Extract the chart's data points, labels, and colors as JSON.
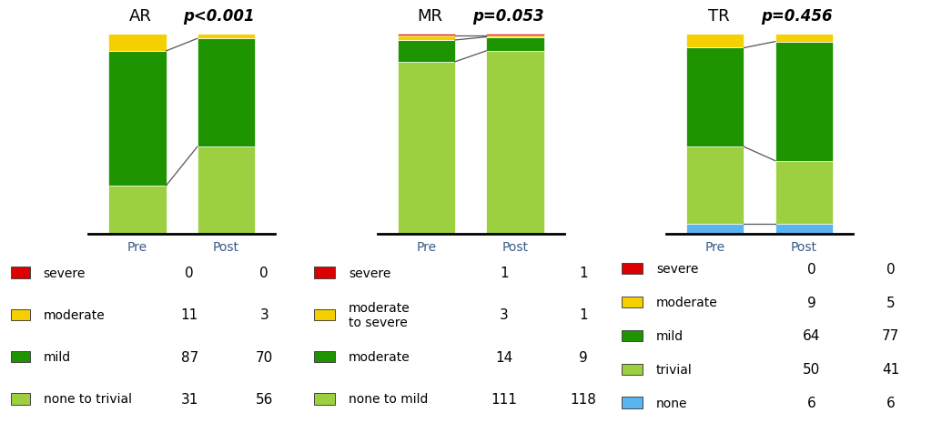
{
  "charts": [
    {
      "title": "AR",
      "pvalue": "p<0.001",
      "categories": [
        "Pre",
        "Post"
      ],
      "layers": [
        {
          "label": "severe",
          "color": "#dd0000",
          "values": [
            0,
            0
          ]
        },
        {
          "label": "moderate",
          "color": "#f5d000",
          "values": [
            11,
            3
          ]
        },
        {
          "label": "mild",
          "color": "#1e9400",
          "values": [
            87,
            70
          ]
        },
        {
          "label": "none to trivial",
          "color": "#9dd040",
          "values": [
            31,
            56
          ]
        }
      ],
      "legend_labels": [
        "severe",
        "moderate",
        "mild",
        "none to trivial"
      ],
      "legend_pre": [
        0,
        11,
        87,
        31
      ],
      "legend_post": [
        0,
        3,
        70,
        56
      ]
    },
    {
      "title": "MR",
      "pvalue": "p=0.053",
      "categories": [
        "Pre",
        "Post"
      ],
      "layers": [
        {
          "label": "severe",
          "color": "#dd0000",
          "values": [
            1,
            1
          ]
        },
        {
          "label": "moderate to severe",
          "color": "#f5d000",
          "values": [
            3,
            1
          ]
        },
        {
          "label": "moderate",
          "color": "#1e9400",
          "values": [
            14,
            9
          ]
        },
        {
          "label": "none to mild",
          "color": "#9dd040",
          "values": [
            111,
            118
          ]
        }
      ],
      "legend_labels": [
        "severe",
        "moderate\nto severe",
        "moderate",
        "none to mild"
      ],
      "legend_pre": [
        1,
        3,
        14,
        111
      ],
      "legend_post": [
        1,
        1,
        9,
        118
      ]
    },
    {
      "title": "TR",
      "pvalue": "p=0.456",
      "categories": [
        "Pre",
        "Post"
      ],
      "layers": [
        {
          "label": "severe",
          "color": "#dd0000",
          "values": [
            0,
            0
          ]
        },
        {
          "label": "moderate",
          "color": "#f5d000",
          "values": [
            9,
            5
          ]
        },
        {
          "label": "mild",
          "color": "#1e9400",
          "values": [
            64,
            77
          ]
        },
        {
          "label": "trivial",
          "color": "#9dd040",
          "values": [
            50,
            41
          ]
        },
        {
          "label": "none",
          "color": "#5ab4f0",
          "values": [
            6,
            6
          ]
        }
      ],
      "legend_labels": [
        "severe",
        "moderate",
        "mild",
        "trivial",
        "none"
      ],
      "legend_pre": [
        0,
        9,
        64,
        50,
        6
      ],
      "legend_post": [
        0,
        5,
        77,
        41,
        6
      ]
    }
  ],
  "background_color": "#ffffff",
  "title_fontsize": 13,
  "pvalue_fontsize": 12,
  "legend_fontsize": 10,
  "tick_fontsize": 10,
  "value_fontsize": 11
}
